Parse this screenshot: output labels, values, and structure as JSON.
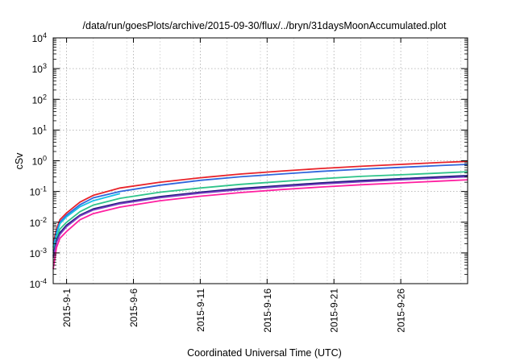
{
  "chart_data": {
    "type": "line",
    "title": "/data/run/goesPlots/archive/2015-09-30/flux/../bryn/31daysMoonAccumulated.plot",
    "xlabel": "Coordinated Universal Time (UTC)",
    "ylabel": "cSv",
    "x_range": [
      "2015-08-31",
      "2015-10-01"
    ],
    "x_ticks": [
      {
        "date": "2015-09-01",
        "label": "2015-9-1"
      },
      {
        "date": "2015-09-06",
        "label": "2015-9-6"
      },
      {
        "date": "2015-09-11",
        "label": "2015-9-11"
      },
      {
        "date": "2015-09-16",
        "label": "2015-9-16"
      },
      {
        "date": "2015-09-21",
        "label": "2015-9-21"
      },
      {
        "date": "2015-09-26",
        "label": "2015-9-26"
      }
    ],
    "y_scale": "log",
    "ylim": [
      0.0001,
      10000
    ],
    "y_ticks": [
      {
        "value": 0.0001,
        "base": "10",
        "exp": "-4"
      },
      {
        "value": 0.001,
        "base": "10",
        "exp": "-3"
      },
      {
        "value": 0.01,
        "base": "10",
        "exp": "-2"
      },
      {
        "value": 0.1,
        "base": "10",
        "exp": "-1"
      },
      {
        "value": 1,
        "base": "10",
        "exp": "0"
      },
      {
        "value": 10,
        "base": "10",
        "exp": "1"
      },
      {
        "value": 100,
        "base": "10",
        "exp": "2"
      },
      {
        "value": 1000,
        "base": "10",
        "exp": "3"
      },
      {
        "value": 10000,
        "base": "10",
        "exp": "4"
      }
    ],
    "grid": true,
    "legend": "none",
    "series": [
      {
        "color": "#e8232a",
        "x": [
          "2015-08-31",
          "2015-08-31T06:00",
          "2015-08-31T12:00",
          "2015-09-01",
          "2015-09-02",
          "2015-09-03",
          "2015-09-05",
          "2015-09-08",
          "2015-09-11",
          "2015-09-14",
          "2015-09-17",
          "2015-09-20",
          "2015-09-23",
          "2015-09-26",
          "2015-09-29",
          "2015-10-01"
        ],
        "values": [
          0.002,
          0.006,
          0.012,
          0.02,
          0.045,
          0.075,
          0.13,
          0.2,
          0.28,
          0.37,
          0.46,
          0.56,
          0.66,
          0.76,
          0.88,
          0.95
        ]
      },
      {
        "color": "#2f66dc",
        "x": [
          "2015-08-31",
          "2015-08-31T06:00",
          "2015-08-31T12:00",
          "2015-09-01",
          "2015-09-02",
          "2015-09-03",
          "2015-09-05",
          "2015-09-08",
          "2015-09-11",
          "2015-09-14",
          "2015-09-17",
          "2015-09-20",
          "2015-09-23",
          "2015-09-26",
          "2015-09-29",
          "2015-10-01"
        ],
        "values": [
          0.0015,
          0.005,
          0.01,
          0.017,
          0.037,
          0.062,
          0.1,
          0.16,
          0.23,
          0.3,
          0.37,
          0.45,
          0.53,
          0.61,
          0.7,
          0.76
        ]
      },
      {
        "color": "#19c0e6",
        "x": [
          "2015-08-31",
          "2015-08-31T06:00",
          "2015-08-31T12:00",
          "2015-09-01",
          "2015-09-02",
          "2015-09-03",
          "2015-09-05"
        ],
        "values": [
          0.0012,
          0.004,
          0.009,
          0.015,
          0.032,
          0.05,
          0.085
        ]
      },
      {
        "color": "#2ec48a",
        "x": [
          "2015-08-31",
          "2015-08-31T06:00",
          "2015-08-31T12:00",
          "2015-09-01",
          "2015-09-02",
          "2015-09-03",
          "2015-09-05",
          "2015-09-08",
          "2015-09-11",
          "2015-09-14",
          "2015-09-17",
          "2015-09-20",
          "2015-09-23",
          "2015-09-26",
          "2015-09-29",
          "2015-10-01"
        ],
        "values": [
          0.001,
          0.003,
          0.006,
          0.01,
          0.022,
          0.036,
          0.06,
          0.095,
          0.13,
          0.17,
          0.21,
          0.26,
          0.31,
          0.35,
          0.4,
          0.44
        ]
      },
      {
        "color": "#1a1a7a",
        "x": [
          "2015-08-31",
          "2015-08-31T06:00",
          "2015-08-31T12:00",
          "2015-09-01",
          "2015-09-02",
          "2015-09-03",
          "2015-09-05",
          "2015-09-08",
          "2015-09-11",
          "2015-09-14",
          "2015-09-17",
          "2015-09-20",
          "2015-09-23",
          "2015-09-26",
          "2015-09-29",
          "2015-10-01"
        ],
        "values": [
          0.0008,
          0.0025,
          0.0045,
          0.008,
          0.017,
          0.027,
          0.043,
          0.068,
          0.095,
          0.125,
          0.155,
          0.19,
          0.225,
          0.26,
          0.3,
          0.33
        ]
      },
      {
        "color": "#7a3ec2",
        "x": [
          "2015-08-31",
          "2015-08-31T06:00",
          "2015-08-31T12:00",
          "2015-09-01",
          "2015-09-02",
          "2015-09-03",
          "2015-09-05",
          "2015-09-08",
          "2015-09-11",
          "2015-09-14",
          "2015-09-17",
          "2015-09-20",
          "2015-09-23",
          "2015-09-26",
          "2015-09-29",
          "2015-10-01"
        ],
        "values": [
          0.0007,
          0.0022,
          0.004,
          0.0072,
          0.016,
          0.025,
          0.04,
          0.063,
          0.088,
          0.115,
          0.143,
          0.175,
          0.207,
          0.24,
          0.275,
          0.3
        ]
      },
      {
        "color": "#ff1fa0",
        "x": [
          "2015-08-31",
          "2015-08-31T06:00",
          "2015-08-31T12:00",
          "2015-09-01",
          "2015-09-02",
          "2015-09-03",
          "2015-09-05",
          "2015-09-08",
          "2015-09-11",
          "2015-09-14",
          "2015-09-17",
          "2015-09-20",
          "2015-09-23",
          "2015-09-26",
          "2015-09-29",
          "2015-10-01"
        ],
        "values": [
          0.0003,
          0.0015,
          0.003,
          0.005,
          0.012,
          0.019,
          0.031,
          0.05,
          0.07,
          0.092,
          0.115,
          0.14,
          0.165,
          0.19,
          0.218,
          0.24
        ]
      }
    ]
  }
}
